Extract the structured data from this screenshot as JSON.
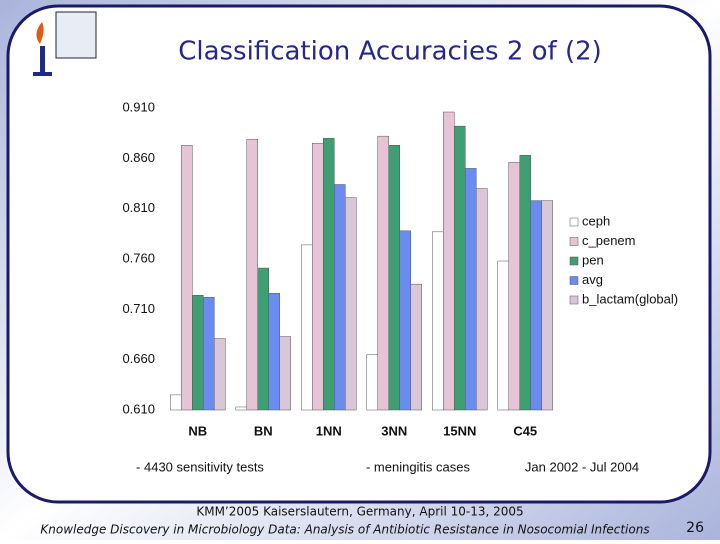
{
  "chart_data": {
    "type": "bar",
    "title": "Classification Accuracies 2 of (2)",
    "categories": [
      "NB",
      "BN",
      "1NN",
      "3NN",
      "15NN",
      "C45"
    ],
    "series": [
      {
        "name": "ceph",
        "color": "#ffffff",
        "values": [
          0.625,
          0.613,
          0.774,
          0.665,
          0.787,
          0.758
        ]
      },
      {
        "name": "c_penem",
        "color": "#e6c4d6",
        "values": [
          0.873,
          0.879,
          0.875,
          0.882,
          0.906,
          0.856
        ]
      },
      {
        "name": "pen",
        "color": "#3f9f72",
        "values": [
          0.724,
          0.751,
          0.88,
          0.873,
          0.892,
          0.863
        ]
      },
      {
        "name": "avg",
        "color": "#6a8cf0",
        "values": [
          0.722,
          0.726,
          0.834,
          0.788,
          0.85,
          0.818
        ]
      },
      {
        "name": "b_lactam(global)",
        "color": "#d9c6d6",
        "values": [
          0.681,
          0.683,
          0.821,
          0.735,
          0.83,
          0.818
        ]
      }
    ],
    "ylim": [
      0.61,
      0.91
    ],
    "yticks": [
      {
        "value": 0.61,
        "label": "0.610"
      },
      {
        "value": 0.66,
        "label": "0.660"
      },
      {
        "value": 0.71,
        "label": "0.710"
      },
      {
        "value": 0.76,
        "label": "0.760"
      },
      {
        "value": 0.81,
        "label": "0.810"
      },
      {
        "value": 0.86,
        "label": "0.860"
      },
      {
        "value": 0.91,
        "label": "0.910"
      }
    ],
    "grid": false,
    "legend": "right",
    "annotations": [
      "- 4430 sensitivity tests",
      "- meningitis cases",
      "Jan 2002 - Jul 2004"
    ]
  },
  "footer": {
    "lines": [
      "KMM’2005 Kaiserslautern, Germany,  April 10-13, 2005",
      "Knowledge Discovery in Microbiology Data: Analysis of Antibiotic Resistance in Nosocomial Infections"
    ],
    "page": "26"
  }
}
